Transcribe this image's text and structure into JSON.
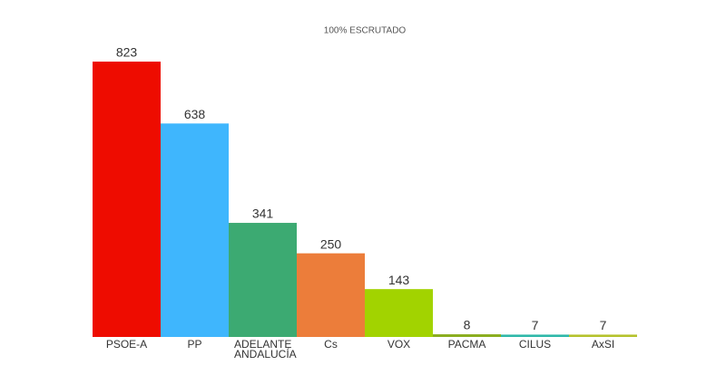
{
  "chart_data": {
    "type": "bar",
    "title": "100% ESCRUTADO",
    "categories": [
      "PSOE-A",
      "PP",
      "ADELANTE ANDALUCÍA",
      "Cs",
      "VOX",
      "PACMA",
      "CILUS",
      "AxSI"
    ],
    "values": [
      823,
      638,
      341,
      250,
      143,
      8,
      7,
      7
    ],
    "colors": [
      "#ee0c00",
      "#3fb6fd",
      "#3caa72",
      "#ec7d3a",
      "#a2d300",
      "#8aad1e",
      "#2fb8a9",
      "#b5c22c"
    ]
  }
}
